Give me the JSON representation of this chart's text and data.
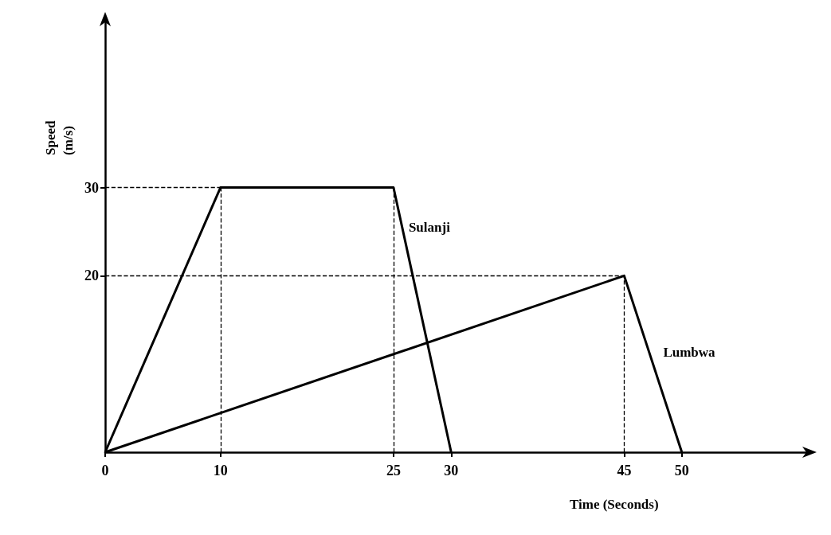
{
  "chart_data": {
    "type": "line",
    "xlabel": "Time (Seconds)",
    "ylabel": "Speed (m/s)",
    "xlim": [
      0,
      61
    ],
    "ylim": [
      0,
      49
    ],
    "xticks": [
      0,
      10,
      25,
      30,
      45,
      50
    ],
    "yticks": [
      20,
      30
    ],
    "series": [
      {
        "name": "Sulanji",
        "color": "#000000",
        "x": [
          0,
          10,
          25,
          30
        ],
        "values": [
          0,
          30,
          30,
          0
        ]
      },
      {
        "name": "Lumbwa",
        "color": "#000000",
        "x": [
          0,
          45,
          50
        ],
        "values": [
          0,
          20,
          0
        ]
      }
    ],
    "ref_lines": [
      {
        "axis": "y",
        "value": 30,
        "line_style": "dashed",
        "color": "#000000"
      },
      {
        "axis": "y",
        "value": 20,
        "line_style": "dashed",
        "color": "#000000"
      },
      {
        "axis": "x",
        "value": 10,
        "line_style": "dashed",
        "color": "#000000"
      },
      {
        "axis": "x",
        "value": 25,
        "line_style": "dashed",
        "color": "#000000"
      },
      {
        "axis": "x",
        "value": 45,
        "line_style": "dashed",
        "color": "#000000"
      }
    ],
    "marker": "none",
    "line_style": "solid",
    "grid": false,
    "legend": false
  }
}
